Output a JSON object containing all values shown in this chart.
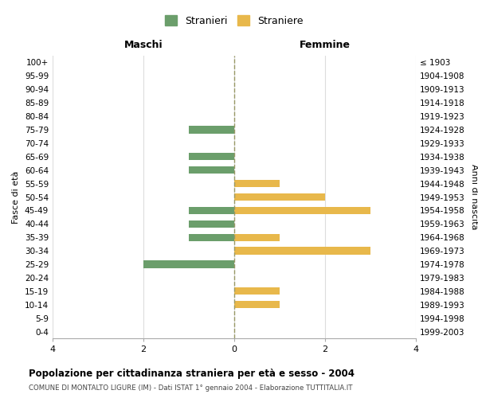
{
  "age_groups": [
    "100+",
    "95-99",
    "90-94",
    "85-89",
    "80-84",
    "75-79",
    "70-74",
    "65-69",
    "60-64",
    "55-59",
    "50-54",
    "45-49",
    "40-44",
    "35-39",
    "30-34",
    "25-29",
    "20-24",
    "15-19",
    "10-14",
    "5-9",
    "0-4"
  ],
  "birth_years": [
    "≤ 1903",
    "1904-1908",
    "1909-1913",
    "1914-1918",
    "1919-1923",
    "1924-1928",
    "1929-1933",
    "1934-1938",
    "1939-1943",
    "1944-1948",
    "1949-1953",
    "1954-1958",
    "1959-1963",
    "1964-1968",
    "1969-1973",
    "1974-1978",
    "1979-1983",
    "1984-1988",
    "1989-1993",
    "1994-1998",
    "1999-2003"
  ],
  "maschi": [
    0,
    0,
    0,
    0,
    0,
    1,
    0,
    1,
    1,
    0,
    0,
    1,
    1,
    1,
    0,
    2,
    0,
    0,
    0,
    0,
    0
  ],
  "femmine": [
    0,
    0,
    0,
    0,
    0,
    0,
    0,
    0,
    0,
    1,
    2,
    3,
    0,
    1,
    3,
    0,
    0,
    1,
    1,
    0,
    0
  ],
  "male_color": "#6b9e6b",
  "female_color": "#e8b84b",
  "title": "Popolazione per cittadinanza straniera per età e sesso - 2004",
  "subtitle": "COMUNE DI MONTALTO LIGURE (IM) - Dati ISTAT 1° gennaio 2004 - Elaborazione TUTTITALIA.IT",
  "xlabel_left": "Maschi",
  "xlabel_right": "Femmine",
  "ylabel": "Fasce di età",
  "ylabel_right": "Anni di nascita",
  "legend_male": "Stranieri",
  "legend_female": "Straniere",
  "xlim": 4,
  "bg_color": "#ffffff",
  "grid_color": "#dddddd",
  "center_line_color": "#999966"
}
